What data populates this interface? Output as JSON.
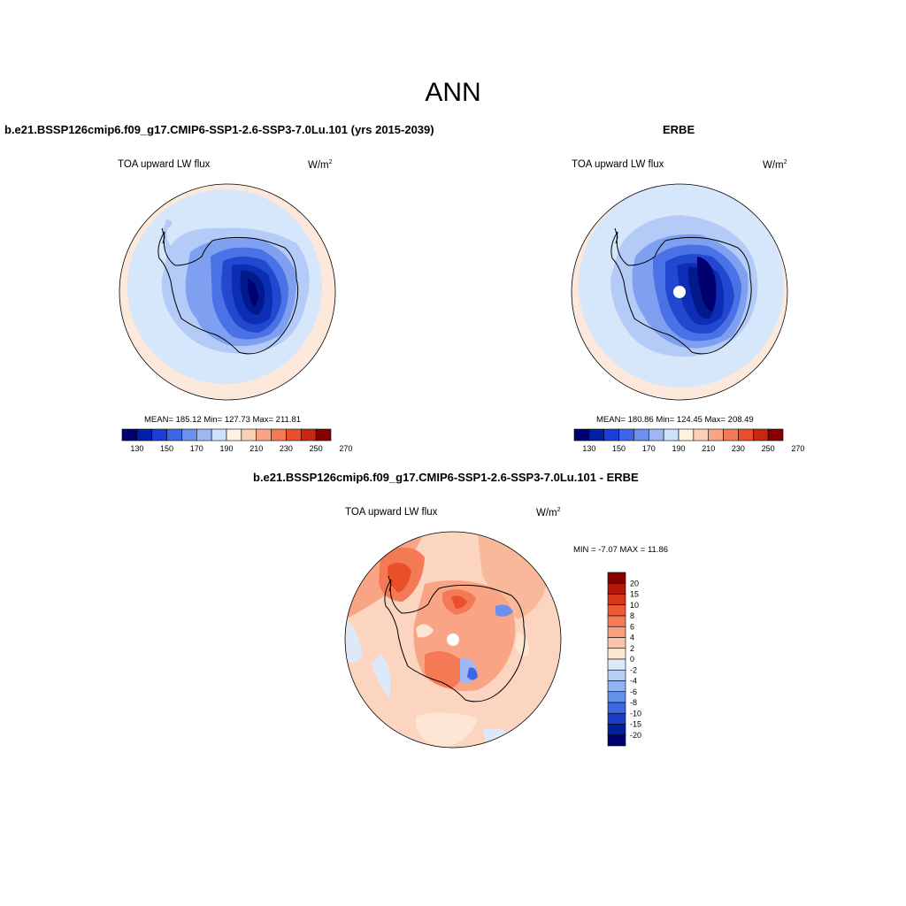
{
  "page_title": "ANN",
  "panels": [
    {
      "title": "b.e21.BSSP126cmip6.f09_g17.CMIP6-SSP1-2.6-SSP3-7.0Lu.101 (yrs 2015-2039)",
      "variable": "TOA upward LW flux",
      "units": "W/m",
      "units_sup": "2",
      "stats": "MEAN= 185.12  Min= 127.73  Max= 211.81"
    },
    {
      "title": "ERBE",
      "variable": "TOA upward LW flux",
      "units": "W/m",
      "units_sup": "2",
      "stats": "MEAN= 180.86  Min= 124.45  Max= 208.49"
    },
    {
      "title": "b.e21.BSSP126cmip6.f09_g17.CMIP6-SSP1-2.6-SSP3-7.0Lu.101 - ERBE",
      "variable": "TOA upward LW flux",
      "units": "W/m",
      "units_sup": "2",
      "stats": "MIN =  -7.07 MAX =  11.86"
    }
  ],
  "colorbar_abs": {
    "ticks": [
      "130",
      "150",
      "170",
      "190",
      "210",
      "230",
      "250",
      "270"
    ],
    "colors": [
      "#000070",
      "#0020a8",
      "#1b3fd4",
      "#3d66e8",
      "#6d8ff0",
      "#9fb7f5",
      "#cfe0fa",
      "#fff0e1",
      "#fcd0b4",
      "#f9a585",
      "#f47a55",
      "#e8502c",
      "#c72812",
      "#870000"
    ]
  },
  "colorbar_diff": {
    "ticks": [
      "20",
      "15",
      "10",
      "8",
      "6",
      "4",
      "2",
      "0",
      "-2",
      "-4",
      "-6",
      "-8",
      "-10",
      "-15",
      "-20"
    ],
    "colors": [
      "#870000",
      "#b5180a",
      "#d8361a",
      "#ee5a32",
      "#f57c55",
      "#f8a080",
      "#fbc4a8",
      "#fde6d4",
      "#dde9f9",
      "#b8cff6",
      "#91b3f2",
      "#6590ec",
      "#3c68e2",
      "#1a3ec8",
      "#0020a0",
      "#000070"
    ]
  }
}
